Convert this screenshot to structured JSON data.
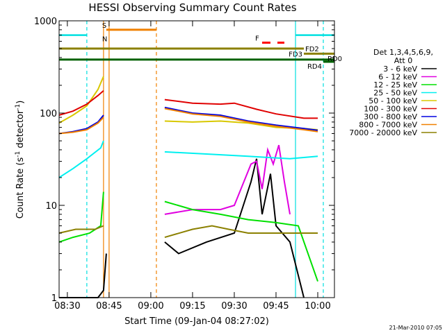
{
  "chart_data": {
    "type": "line",
    "title": "HESSI Observing Summary Count Rates",
    "xlabel": "Start Time (09-Jan-04 08:27:02)",
    "ylabel_main": "Count Rate (s",
    "ylabel_sup1": "-1",
    "ylabel_mid": " detector",
    "ylabel_sup2": "-1",
    "ylabel_end": ")",
    "y_scale": "log",
    "ylim": [
      1,
      1000
    ],
    "xlim": [
      "08:27:02",
      "10:06:00"
    ],
    "x_ticks": [
      "08:30",
      "08:45",
      "09:00",
      "09:15",
      "09:30",
      "09:45",
      "10:00"
    ],
    "y_ticks": [
      "1",
      "10",
      "100",
      "1000"
    ],
    "legend_header": [
      "Det 1,3,4,5,6,9,",
      "Att 0"
    ],
    "legend_position": "right",
    "series": [
      {
        "name": "3 - 6 keV",
        "color": "#000000",
        "points": [
          [
            "08:27",
            1
          ],
          [
            "08:41",
            1
          ],
          [
            "08:43",
            1.2
          ],
          [
            "08:44",
            3
          ],
          [
            "09:05",
            4
          ],
          [
            "09:10",
            3
          ],
          [
            "09:20",
            4
          ],
          [
            "09:30",
            5
          ],
          [
            "09:36",
            18
          ],
          [
            "09:38",
            32
          ],
          [
            "09:40",
            8
          ],
          [
            "09:43",
            22
          ],
          [
            "09:45",
            6
          ],
          [
            "09:50",
            4
          ],
          [
            "09:55",
            1
          ]
        ]
      },
      {
        "name": "6 - 12 keV",
        "color": "#e000e0",
        "points": [
          [
            "09:05",
            8
          ],
          [
            "09:15",
            9
          ],
          [
            "09:25",
            9
          ],
          [
            "09:30",
            10
          ],
          [
            "09:36",
            28
          ],
          [
            "09:38",
            30
          ],
          [
            "09:40",
            15
          ],
          [
            "09:42",
            40
          ],
          [
            "09:44",
            28
          ],
          [
            "09:46",
            45
          ],
          [
            "09:48",
            18
          ],
          [
            "09:50",
            8
          ]
        ]
      },
      {
        "name": "12 - 25 keV",
        "color": "#00e000",
        "points": [
          [
            "08:27",
            4
          ],
          [
            "08:32",
            4.5
          ],
          [
            "08:38",
            5
          ],
          [
            "08:42",
            6
          ],
          [
            "08:43",
            14
          ],
          [
            "09:05",
            11
          ],
          [
            "09:15",
            9
          ],
          [
            "09:25",
            8
          ],
          [
            "09:35",
            7
          ],
          [
            "09:45",
            6.5
          ],
          [
            "09:53",
            6
          ],
          [
            "10:00",
            1.5
          ]
        ]
      },
      {
        "name": "25 - 50 keV",
        "color": "#00f0f0",
        "points": [
          [
            "08:27",
            20
          ],
          [
            "08:32",
            25
          ],
          [
            "08:37",
            32
          ],
          [
            "08:42",
            42
          ],
          [
            "08:43",
            50
          ],
          [
            "09:05",
            38
          ],
          [
            "09:20",
            36
          ],
          [
            "09:35",
            34
          ],
          [
            "09:50",
            32
          ],
          [
            "10:00",
            34
          ]
        ]
      },
      {
        "name": "50 - 100 keV",
        "color": "#d8c800",
        "points": [
          [
            "08:27",
            78
          ],
          [
            "08:32",
            95
          ],
          [
            "08:37",
            120
          ],
          [
            "08:41",
            180
          ],
          [
            "08:43",
            250
          ],
          [
            "09:05",
            82
          ],
          [
            "09:15",
            80
          ],
          [
            "09:25",
            82
          ],
          [
            "09:35",
            78
          ],
          [
            "09:45",
            70
          ],
          [
            "09:55",
            68
          ],
          [
            "10:00",
            66
          ]
        ]
      },
      {
        "name": "100 - 300 keV",
        "color": "#e00000",
        "points": [
          [
            "08:27",
            95
          ],
          [
            "08:32",
            105
          ],
          [
            "08:37",
            125
          ],
          [
            "08:41",
            155
          ],
          [
            "08:43",
            175
          ],
          [
            "09:05",
            140
          ],
          [
            "09:15",
            128
          ],
          [
            "09:25",
            125
          ],
          [
            "09:30",
            128
          ],
          [
            "09:38",
            110
          ],
          [
            "09:45",
            98
          ],
          [
            "09:55",
            88
          ],
          [
            "10:00",
            88
          ]
        ]
      },
      {
        "name": "300 - 800 keV",
        "color": "#0000e0",
        "points": [
          [
            "08:27",
            60
          ],
          [
            "08:32",
            63
          ],
          [
            "08:37",
            68
          ],
          [
            "08:41",
            80
          ],
          [
            "08:43",
            95
          ],
          [
            "09:05",
            115
          ],
          [
            "09:15",
            100
          ],
          [
            "09:25",
            95
          ],
          [
            "09:35",
            82
          ],
          [
            "09:45",
            74
          ],
          [
            "09:55",
            68
          ],
          [
            "10:00",
            65
          ]
        ]
      },
      {
        "name": "800 - 7000 keV",
        "color": "#f08000",
        "points": [
          [
            "08:27",
            60
          ],
          [
            "08:32",
            62
          ],
          [
            "08:37",
            66
          ],
          [
            "08:41",
            78
          ],
          [
            "08:43",
            90
          ],
          [
            "09:05",
            112
          ],
          [
            "09:15",
            98
          ],
          [
            "09:25",
            92
          ],
          [
            "09:35",
            80
          ],
          [
            "09:45",
            72
          ],
          [
            "09:55",
            66
          ],
          [
            "10:00",
            63
          ]
        ]
      },
      {
        "name": "7000 - 20000 keV",
        "color": "#8b8000",
        "points": [
          [
            "08:27",
            5
          ],
          [
            "08:33",
            5.5
          ],
          [
            "08:40",
            5.5
          ],
          [
            "08:43",
            6
          ],
          [
            "09:05",
            4.5
          ],
          [
            "09:15",
            5.5
          ],
          [
            "09:22",
            6
          ],
          [
            "09:28",
            5.5
          ],
          [
            "09:35",
            5
          ],
          [
            "09:45",
            5
          ],
          [
            "09:53",
            5
          ],
          [
            "10:00",
            5
          ]
        ]
      }
    ],
    "attenuator_and_flags": [
      {
        "label": "S",
        "color": "#f08000",
        "start": "08:44",
        "end": "09:02",
        "y": 800
      },
      {
        "label": "N",
        "color": "#00e0e0",
        "start": "08:44",
        "end": "08:44",
        "y": 700
      },
      {
        "label": "F",
        "color": "#ff0000",
        "start": "09:40",
        "end": "09:48",
        "y": 580
      },
      {
        "label": "FD2",
        "color": "#8b8000",
        "start": "08:27",
        "end": "09:55",
        "y": 500
      },
      {
        "label": "FD3",
        "color": "#8b8000",
        "start": "09:55",
        "end": "10:06",
        "y": 440
      },
      {
        "label": "RD4",
        "color": "#006000",
        "start": "08:27",
        "end": "10:06",
        "y": 380
      },
      {
        "label": "RD0",
        "color": "#006000",
        "start": "10:02",
        "end": "10:06",
        "y": 360
      }
    ],
    "cyan_solid_lines_before": [
      "08:27",
      "08:37"
    ],
    "cyan_solid_lines_after": [
      "09:52",
      "10:06"
    ],
    "vertical_markers": [
      {
        "time": "08:37",
        "color": "#00e0e0",
        "style": "dashed"
      },
      {
        "time": "08:43",
        "color": "#f08000",
        "style": "solid"
      },
      {
        "time": "08:45",
        "color": "#f08000",
        "style": "solid"
      },
      {
        "time": "09:02",
        "color": "#f08000",
        "style": "dashed"
      },
      {
        "time": "09:52",
        "color": "#00e0e0",
        "style": "solid"
      },
      {
        "time": "10:02",
        "color": "#00e0e0",
        "style": "dashed"
      }
    ],
    "footer": "21-Mar-2010 07:05"
  }
}
